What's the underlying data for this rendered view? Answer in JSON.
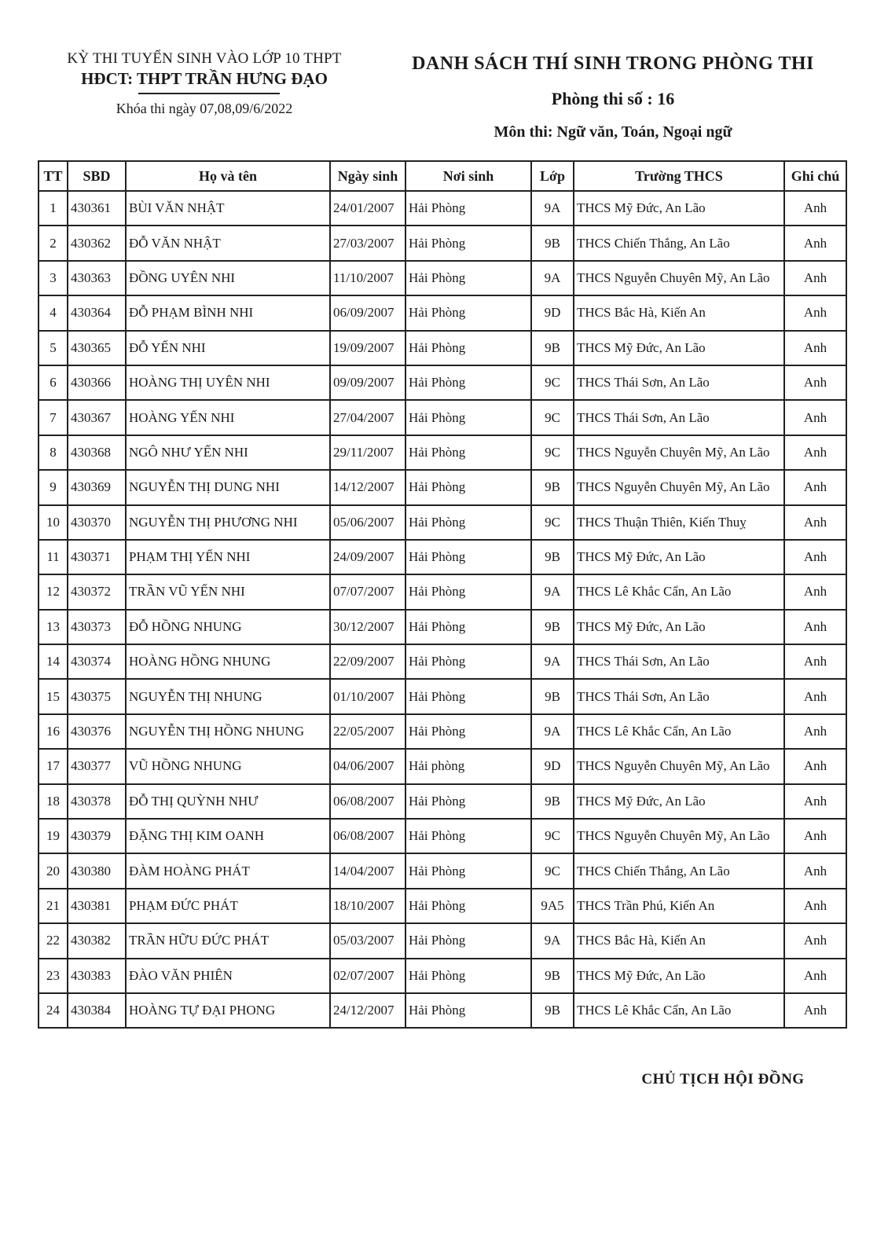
{
  "header_left": {
    "line1": "KỲ THI TUYỂN SINH VÀO LỚP 10 THPT",
    "line2": "HĐCT: THPT TRẦN HƯNG ĐẠO",
    "line3": "Khóa thi ngày 07,08,09/6/2022"
  },
  "header_right": {
    "title": "DANH SÁCH THÍ SINH TRONG PHÒNG THI",
    "room": "Phòng thi số : 16",
    "subjects": "Môn thi: Ngữ văn, Toán, Ngoại ngữ"
  },
  "table": {
    "columns": [
      "TT",
      "SBD",
      "Họ và tên",
      "Ngày sinh",
      "Nơi sinh",
      "Lớp",
      "Trường THCS",
      "Ghi chú"
    ],
    "rows": [
      [
        "1",
        "430361",
        "BÙI VĂN NHẬT",
        "24/01/2007",
        "Hải Phòng",
        "9A",
        "THCS Mỹ Đức, An Lão",
        "Anh"
      ],
      [
        "2",
        "430362",
        "ĐỖ VĂN NHẬT",
        "27/03/2007",
        "Hải Phòng",
        "9B",
        "THCS Chiến Thắng, An Lão",
        "Anh"
      ],
      [
        "3",
        "430363",
        "ĐỒNG UYÊN NHI",
        "11/10/2007",
        "Hải Phòng",
        "9A",
        "THCS Nguyễn Chuyên Mỹ, An Lão",
        "Anh"
      ],
      [
        "4",
        "430364",
        "ĐỖ PHẠM BÌNH NHI",
        "06/09/2007",
        "Hải Phòng",
        "9D",
        "THCS Bắc Hà, Kiến An",
        "Anh"
      ],
      [
        "5",
        "430365",
        "ĐỖ YẾN NHI",
        "19/09/2007",
        "Hải Phòng",
        "9B",
        "THCS Mỹ Đức, An Lão",
        "Anh"
      ],
      [
        "6",
        "430366",
        "HOÀNG THỊ UYÊN NHI",
        "09/09/2007",
        "Hải Phòng",
        "9C",
        "THCS Thái Sơn, An Lão",
        "Anh"
      ],
      [
        "7",
        "430367",
        "HOÀNG YẾN NHI",
        "27/04/2007",
        "Hải Phòng",
        "9C",
        "THCS Thái Sơn, An Lão",
        "Anh"
      ],
      [
        "8",
        "430368",
        "NGÔ NHƯ YẾN NHI",
        "29/11/2007",
        "Hải Phòng",
        "9C",
        "THCS Nguyễn Chuyên Mỹ, An Lão",
        "Anh"
      ],
      [
        "9",
        "430369",
        "NGUYỄN THỊ DUNG NHI",
        "14/12/2007",
        "Hải Phòng",
        "9B",
        "THCS Nguyễn Chuyên Mỹ, An Lão",
        "Anh"
      ],
      [
        "10",
        "430370",
        "NGUYỄN THỊ PHƯƠNG NHI",
        "05/06/2007",
        "Hải Phòng",
        "9C",
        "THCS Thuận Thiên, Kiến Thuỵ",
        "Anh"
      ],
      [
        "11",
        "430371",
        "PHẠM THỊ YẾN NHI",
        "24/09/2007",
        "Hải Phòng",
        "9B",
        "THCS Mỹ Đức, An Lão",
        "Anh"
      ],
      [
        "12",
        "430372",
        "TRẦN VŨ YẾN NHI",
        "07/07/2007",
        "Hải Phòng",
        "9A",
        "THCS Lê Khắc Cẩn, An Lão",
        "Anh"
      ],
      [
        "13",
        "430373",
        "ĐỖ HỒNG NHUNG",
        "30/12/2007",
        "Hải Phòng",
        "9B",
        "THCS Mỹ Đức, An Lão",
        "Anh"
      ],
      [
        "14",
        "430374",
        "HOÀNG HỒNG NHUNG",
        "22/09/2007",
        "Hải Phòng",
        "9A",
        "THCS Thái Sơn, An Lão",
        "Anh"
      ],
      [
        "15",
        "430375",
        "NGUYỄN THỊ NHUNG",
        "01/10/2007",
        "Hải Phòng",
        "9B",
        "THCS Thái Sơn, An Lão",
        "Anh"
      ],
      [
        "16",
        "430376",
        "NGUYỄN THỊ HỒNG NHUNG",
        "22/05/2007",
        "Hải Phòng",
        "9A",
        "THCS Lê Khắc Cẩn, An Lão",
        "Anh"
      ],
      [
        "17",
        "430377",
        "VŨ HỒNG NHUNG",
        "04/06/2007",
        "Hải phòng",
        "9D",
        "THCS Nguyễn Chuyên Mỹ, An Lão",
        "Anh"
      ],
      [
        "18",
        "430378",
        "ĐỖ THỊ QUỲNH NHƯ",
        "06/08/2007",
        "Hải Phòng",
        "9B",
        "THCS Mỹ Đức, An Lão",
        "Anh"
      ],
      [
        "19",
        "430379",
        "ĐẶNG THỊ KIM OANH",
        "06/08/2007",
        "Hải Phòng",
        "9C",
        "THCS Nguyễn Chuyên Mỹ, An Lão",
        "Anh"
      ],
      [
        "20",
        "430380",
        "ĐÀM HOÀNG PHÁT",
        "14/04/2007",
        "Hải Phòng",
        "9C",
        "THCS Chiến Thắng, An Lão",
        "Anh"
      ],
      [
        "21",
        "430381",
        "PHẠM ĐỨC PHÁT",
        "18/10/2007",
        "Hải Phòng",
        "9A5",
        "THCS Trần Phú, Kiến An",
        "Anh"
      ],
      [
        "22",
        "430382",
        "TRẦN HỮU ĐỨC PHÁT",
        "05/03/2007",
        "Hải Phòng",
        "9A",
        "THCS Bắc Hà, Kiến An",
        "Anh"
      ],
      [
        "23",
        "430383",
        "ĐÀO VĂN PHIÊN",
        "02/07/2007",
        "Hải Phòng",
        "9B",
        "THCS Mỹ Đức, An Lão",
        "Anh"
      ],
      [
        "24",
        "430384",
        "HOÀNG TỰ ĐẠI PHONG",
        "24/12/2007",
        "Hải Phòng",
        "9B",
        "THCS Lê Khắc Cẩn, An Lão",
        "Anh"
      ]
    ]
  },
  "footer": {
    "signature_title": "CHỦ TỊCH HỘI ĐỒNG"
  }
}
